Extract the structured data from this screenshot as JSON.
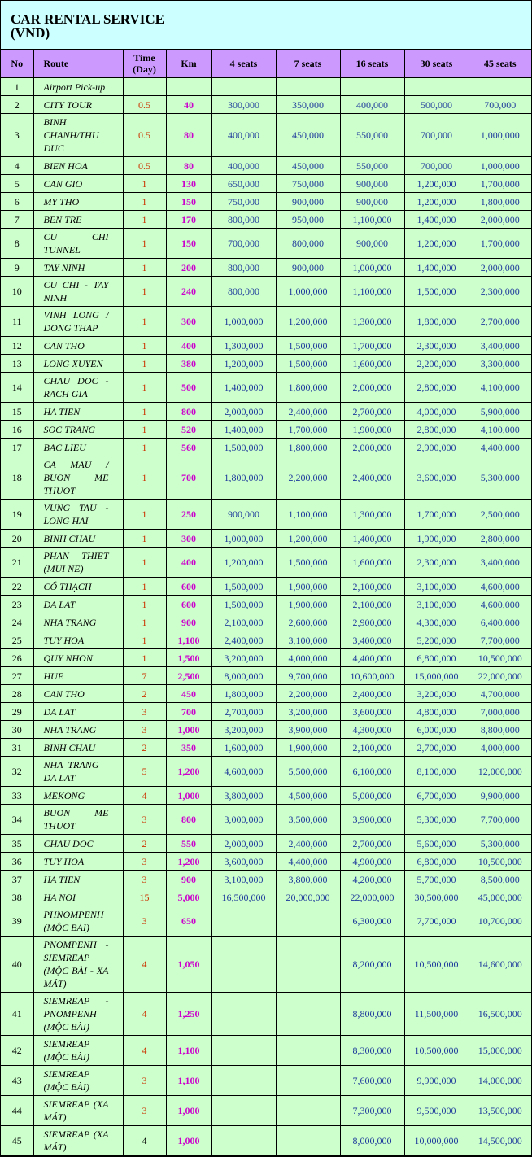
{
  "title_line1": "CAR RENTAL SERVICE",
  "title_line2": "(VND)",
  "colors": {
    "title_bg": "#ccffff",
    "header_bg": "#cc99ff",
    "cell_bg": "#ccffcc",
    "time": "#cc3300",
    "km": "#cc00cc",
    "price": "#1f3a9c"
  },
  "headers": [
    "No",
    "Route",
    "Time (Day)",
    "Km",
    "4 seats",
    "7 seats",
    "16 seats",
    "30 seats",
    "45 seats"
  ],
  "rows": [
    {
      "c": [
        "1",
        "Airport Pick-up",
        "",
        "",
        "",
        "",
        "",
        "",
        ""
      ]
    },
    {
      "c": [
        "2",
        "CITY TOUR",
        "0.5",
        "40",
        "300,000",
        "350,000",
        "400,000",
        "500,000",
        "700,000"
      ]
    },
    {
      "c": [
        "3",
        "BINH CHANH/THU DUC",
        "0.5",
        "80",
        "400,000",
        "450,000",
        "550,000",
        "700,000",
        "1,000,000"
      ]
    },
    {
      "c": [
        "4",
        "BIEN HOA",
        "0.5",
        "80",
        "400,000",
        "450,000",
        "550,000",
        "700,000",
        "1,000,000"
      ]
    },
    {
      "c": [
        "5",
        "CAN GIO",
        "1",
        "130",
        "650,000",
        "750,000",
        "900,000",
        "1,200,000",
        "1,700,000"
      ]
    },
    {
      "c": [
        "6",
        "MY THO",
        "1",
        "150",
        "750,000",
        "900,000",
        "900,000",
        "1,200,000",
        "1,800,000"
      ]
    },
    {
      "c": [
        "7",
        "BEN TRE",
        "1",
        "170",
        "800,000",
        "950,000",
        "1,100,000",
        "1,400,000",
        "2,000,000"
      ]
    },
    {
      "c": [
        "8",
        "CU CHI TUNNEL",
        "1",
        "150",
        "700,000",
        "800,000",
        "900,000",
        "1,200,000",
        "1,700,000"
      ]
    },
    {
      "c": [
        "9",
        "TAY NINH",
        "1",
        "200",
        "800,000",
        "900,000",
        "1,000,000",
        "1,400,000",
        "2,000,000"
      ]
    },
    {
      "c": [
        "10",
        "CU CHI - TAY NINH",
        "1",
        "240",
        "800,000",
        "1,000,000",
        "1,100,000",
        "1,500,000",
        "2,300,000"
      ]
    },
    {
      "c": [
        "11",
        "VINH LONG / DONG THAP",
        "1",
        "300",
        "1,000,000",
        "1,200,000",
        "1,300,000",
        "1,800,000",
        "2,700,000"
      ]
    },
    {
      "c": [
        "12",
        "CAN THO",
        "1",
        "400",
        "1,300,000",
        "1,500,000",
        "1,700,000",
        "2,300,000",
        "3,400,000"
      ]
    },
    {
      "c": [
        "13",
        "LONG XUYEN",
        "1",
        "380",
        "1,200,000",
        "1,500,000",
        "1,600,000",
        "2,200,000",
        "3,300,000"
      ]
    },
    {
      "c": [
        "14",
        "CHAU DOC - RACH GIA",
        "1",
        "500",
        "1,400,000",
        "1,800,000",
        "2,000,000",
        "2,800,000",
        "4,100,000"
      ]
    },
    {
      "c": [
        "15",
        "HA TIEN",
        "1",
        "800",
        "2,000,000",
        "2,400,000",
        "2,700,000",
        "4,000,000",
        "5,900,000"
      ]
    },
    {
      "c": [
        "16",
        "SOC TRANG",
        "1",
        "520",
        "1,400,000",
        "1,700,000",
        "1,900,000",
        "2,800,000",
        "4,100,000"
      ]
    },
    {
      "c": [
        "17",
        "BAC LIEU",
        "1",
        "560",
        "1,500,000",
        "1,800,000",
        "2,000,000",
        "2,900,000",
        "4,400,000"
      ]
    },
    {
      "c": [
        "18",
        "CA MAU / BUON ME THUOT",
        "1",
        "700",
        "1,800,000",
        "2,200,000",
        "2,400,000",
        "3,600,000",
        "5,300,000"
      ]
    },
    {
      "c": [
        "19",
        "VUNG TAU - LONG HAI",
        "1",
        "250",
        "900,000",
        "1,100,000",
        "1,300,000",
        "1,700,000",
        "2,500,000"
      ]
    },
    {
      "c": [
        "20",
        "BINH CHAU",
        "1",
        "300",
        "1,000,000",
        "1,200,000",
        "1,400,000",
        "1,900,000",
        "2,800,000"
      ]
    },
    {
      "c": [
        "21",
        "PHAN THIET (MUI NE)",
        "1",
        "400",
        "1,200,000",
        "1,500,000",
        "1,600,000",
        "2,300,000",
        "3,400,000"
      ]
    },
    {
      "c": [
        "22",
        "CỔ THẠCH",
        "1",
        "600",
        "1,500,000",
        "1,900,000",
        "2,100,000",
        "3,100,000",
        "4,600,000"
      ]
    },
    {
      "c": [
        "23",
        "DA LAT",
        "1",
        "600",
        "1,500,000",
        "1,900,000",
        "2,100,000",
        "3,100,000",
        "4,600,000"
      ]
    },
    {
      "c": [
        "24",
        "NHA TRANG",
        "1",
        "900",
        "2,100,000",
        "2,600,000",
        "2,900,000",
        "4,300,000",
        "6,400,000"
      ]
    },
    {
      "c": [
        "25",
        "TUY HOA",
        "1",
        "1,100",
        "2,400,000",
        "3,100,000",
        "3,400,000",
        "5,200,000",
        "7,700,000"
      ]
    },
    {
      "c": [
        "26",
        "QUY NHON",
        "1",
        "1,500",
        "3,200,000",
        "4,000,000",
        "4,400,000",
        "6,800,000",
        "10,500,000"
      ]
    },
    {
      "c": [
        "27",
        "HUE",
        "7",
        "2,500",
        "8,000,000",
        "9,700,000",
        "10,600,000",
        "15,000,000",
        "22,000,000"
      ]
    },
    {
      "c": [
        "28",
        "CAN THO",
        "2",
        "450",
        "1,800,000",
        "2,200,000",
        "2,400,000",
        "3,200,000",
        "4,700,000"
      ]
    },
    {
      "c": [
        "29",
        "DA LAT",
        "3",
        "700",
        "2,700,000",
        "3,200,000",
        "3,600,000",
        "4,800,000",
        "7,000,000"
      ]
    },
    {
      "c": [
        "30",
        "NHA TRANG",
        "3",
        "1,000",
        "3,200,000",
        "3,900,000",
        "4,300,000",
        "6,000,000",
        "8,800,000"
      ]
    },
    {
      "c": [
        "31",
        "BINH CHAU",
        "2",
        "350",
        "1,600,000",
        "1,900,000",
        "2,100,000",
        "2,700,000",
        "4,000,000"
      ]
    },
    {
      "c": [
        "32",
        "NHA TRANG – DA LAT",
        "5",
        "1,200",
        "4,600,000",
        "5,500,000",
        "6,100,000",
        "8,100,000",
        "12,000,000"
      ]
    },
    {
      "c": [
        "33",
        "MEKONG",
        "4",
        "1,000",
        "3,800,000",
        "4,500,000",
        "5,000,000",
        "6,700,000",
        "9,900,000"
      ]
    },
    {
      "c": [
        "34",
        "BUON ME THUOT",
        "3",
        "800",
        "3,000,000",
        "3,500,000",
        "3,900,000",
        "5,300,000",
        "7,700,000"
      ]
    },
    {
      "c": [
        "35",
        "CHAU DOC",
        "2",
        "550",
        "2,000,000",
        "2,400,000",
        "2,700,000",
        "5,600,000",
        "5,300,000"
      ]
    },
    {
      "c": [
        "36",
        "TUY HOA",
        "3",
        "1,200",
        "3,600,000",
        "4,400,000",
        "4,900,000",
        "6,800,000",
        "10,500,000"
      ]
    },
    {
      "c": [
        "37",
        "HA TIEN",
        "3",
        "900",
        "3,100,000",
        "3,800,000",
        "4,200,000",
        "5,700,000",
        "8,500,000"
      ]
    },
    {
      "c": [
        "38",
        "HA NOI",
        "15",
        "5,000",
        "16,500,000",
        "20,000,000",
        "22,000,000",
        "30,500,000",
        "45,000,000"
      ]
    },
    {
      "c": [
        "39",
        "PHNOMPENH (MỘC BÀI)",
        "3",
        "650",
        "",
        "",
        "6,300,000",
        "7,700,000",
        "10,700,000"
      ]
    },
    {
      "c": [
        "40",
        "PNOMPENH - SIEMREAP (MỘC BÀI - XA MÁT)",
        "4",
        "1,050",
        "",
        "",
        "8,200,000",
        "10,500,000",
        "14,600,000"
      ]
    },
    {
      "c": [
        "41",
        "SIEMREAP - PNOMPENH (MỘC BÀI)",
        "4",
        "1,250",
        "",
        "",
        "8,800,000",
        "11,500,000",
        "16,500,000"
      ]
    },
    {
      "c": [
        "42",
        "SIEMREAP (MỘC BÀI)",
        "4",
        "1,100",
        "",
        "",
        "8,300,000",
        "10,500,000",
        "15,000,000"
      ]
    },
    {
      "c": [
        "43",
        "SIEMREAP (MỘC BÀI)",
        "3",
        "1,100",
        "",
        "",
        "7,600,000",
        "9,900,000",
        "14,000,000"
      ]
    },
    {
      "c": [
        "44",
        "SIEMREAP (XA MÁT)",
        "3",
        "1,000",
        "",
        "",
        "7,300,000",
        "9,500,000",
        "13,500,000"
      ]
    },
    {
      "c": [
        "45",
        "SIEMREAP (XA MÁT)",
        "4",
        "1,000",
        "",
        "",
        "8,000,000",
        "10,000,000",
        "14,500,000"
      ],
      "time_color": "#000000"
    }
  ]
}
